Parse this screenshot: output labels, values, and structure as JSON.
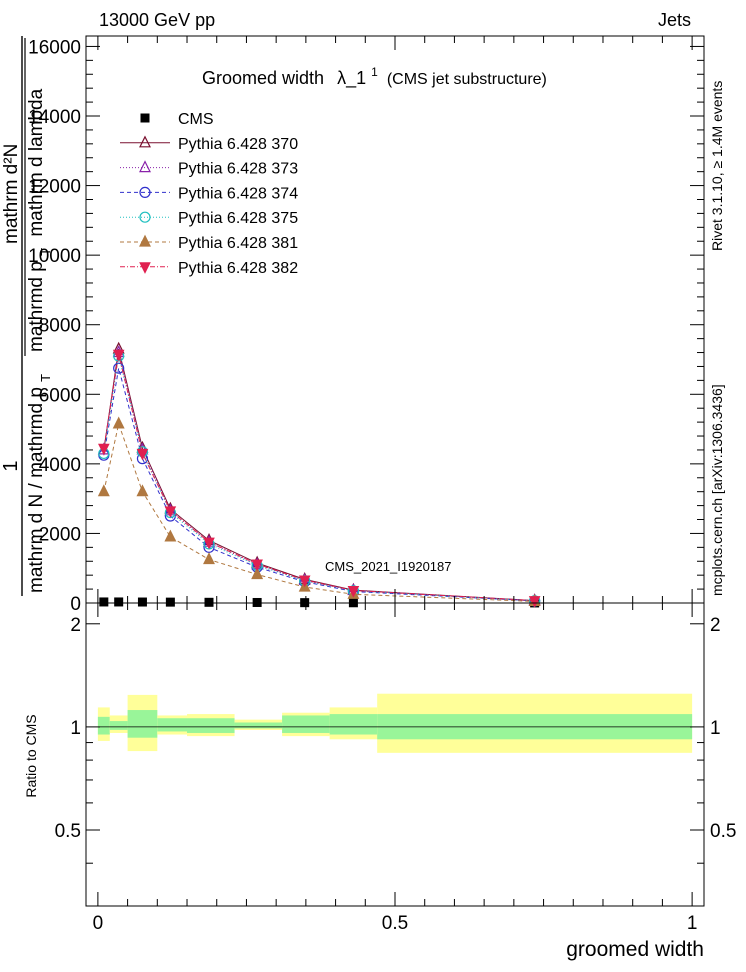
{
  "header": {
    "left": "13000 GeV pp",
    "right": "Jets"
  },
  "side": {
    "rivet": "Rivet 3.1.10, ≥ 1.4M events",
    "mcplots": "mcplots.cern.ch [arXiv:1306.3436]"
  },
  "chart_data": {
    "type": "line",
    "title": "Groomed width",
    "title_symbol": "λ_1",
    "title_sup": "1",
    "title_suffix": "(CMS jet substructure)",
    "analysis_label": "CMS_2021_I1920187",
    "ylabel_parts": [
      "1",
      "mathrm d N / mathrmd p",
      "T",
      "mathrm d²N",
      "mathrmd p",
      "T",
      "mathrm d lambda"
    ],
    "xlabel": "groomed width",
    "ratio_ylabel": "Ratio to CMS",
    "main": {
      "xlim": [
        -0.02,
        1.02
      ],
      "ylim": [
        0,
        16300
      ],
      "yticks": [
        0,
        2000,
        4000,
        6000,
        8000,
        10000,
        12000,
        14000,
        16000
      ],
      "ytick_labels": [
        "0",
        "2000",
        "4000",
        "6000",
        "8000",
        "10000",
        "12000",
        "14000",
        "16000"
      ]
    },
    "ratio": {
      "ylim": [
        0.3,
        2.3
      ],
      "yticks": [
        0.5,
        1,
        2
      ],
      "ytick_labels": [
        "0.5",
        "1",
        "2"
      ]
    },
    "xticks": [
      0,
      0.5,
      1
    ],
    "xtick_labels": [
      "0",
      "0.5",
      "1"
    ],
    "x": [
      0.01,
      0.035,
      0.075,
      0.122,
      0.187,
      0.268,
      0.348,
      0.43,
      0.735
    ],
    "series": [
      {
        "name": "CMS",
        "color": "#000000",
        "marker": "square",
        "dash": "",
        "values": [
          30,
          30,
          28,
          25,
          20,
          15,
          10,
          7,
          2
        ]
      },
      {
        "name": "Pythia 6.428 370",
        "color": "#7a1030",
        "marker": "triangle-open",
        "dash": "",
        "values": [
          4400,
          7300,
          4450,
          2700,
          1800,
          1150,
          680,
          370,
          70
        ]
      },
      {
        "name": "Pythia 6.428 373",
        "color": "#8a22aa",
        "marker": "triangle-open",
        "dash": "1,2",
        "values": [
          4400,
          7200,
          4400,
          2650,
          1750,
          1100,
          650,
          360,
          65
        ]
      },
      {
        "name": "Pythia 6.428 374",
        "color": "#3030cc",
        "marker": "circle-open",
        "dash": "4,3",
        "values": [
          4250,
          6750,
          4150,
          2500,
          1600,
          1030,
          610,
          330,
          60
        ]
      },
      {
        "name": "Pythia 6.428 375",
        "color": "#20c0c0",
        "marker": "circle-open",
        "dash": "1,2",
        "values": [
          4300,
          7100,
          4350,
          2600,
          1700,
          1080,
          640,
          350,
          62
        ]
      },
      {
        "name": "Pythia 6.428 381",
        "color": "#b07840",
        "marker": "triangle-filled",
        "dash": "4,3",
        "values": [
          3200,
          5150,
          3200,
          1900,
          1250,
          820,
          460,
          250,
          45
        ]
      },
      {
        "name": "Pythia 6.428 382",
        "color": "#e02050",
        "marker": "triangle-down-filled",
        "dash": "5,2,1,2",
        "values": [
          4450,
          7150,
          4300,
          2650,
          1750,
          1120,
          660,
          360,
          68
        ]
      }
    ],
    "ratio_bands": [
      {
        "x0": 0.0,
        "x1": 0.02,
        "inner": [
          0.95,
          1.07
        ],
        "outer": [
          0.91,
          1.14
        ]
      },
      {
        "x0": 0.02,
        "x1": 0.05,
        "inner": [
          0.98,
          1.04
        ],
        "outer": [
          0.96,
          1.08
        ]
      },
      {
        "x0": 0.05,
        "x1": 0.1,
        "inner": [
          0.93,
          1.12
        ],
        "outer": [
          0.85,
          1.24
        ]
      },
      {
        "x0": 0.1,
        "x1": 0.15,
        "inner": [
          0.97,
          1.06
        ],
        "outer": [
          0.95,
          1.08
        ]
      },
      {
        "x0": 0.15,
        "x1": 0.23,
        "inner": [
          0.96,
          1.06
        ],
        "outer": [
          0.94,
          1.09
        ]
      },
      {
        "x0": 0.23,
        "x1": 0.31,
        "inner": [
          0.99,
          1.03
        ],
        "outer": [
          0.98,
          1.05
        ]
      },
      {
        "x0": 0.31,
        "x1": 0.39,
        "inner": [
          0.96,
          1.08
        ],
        "outer": [
          0.94,
          1.1
        ]
      },
      {
        "x0": 0.39,
        "x1": 0.47,
        "inner": [
          0.95,
          1.09
        ],
        "outer": [
          0.92,
          1.14
        ]
      },
      {
        "x0": 0.47,
        "x1": 1.0,
        "inner": [
          0.92,
          1.09
        ],
        "outer": [
          0.84,
          1.25
        ]
      }
    ]
  }
}
